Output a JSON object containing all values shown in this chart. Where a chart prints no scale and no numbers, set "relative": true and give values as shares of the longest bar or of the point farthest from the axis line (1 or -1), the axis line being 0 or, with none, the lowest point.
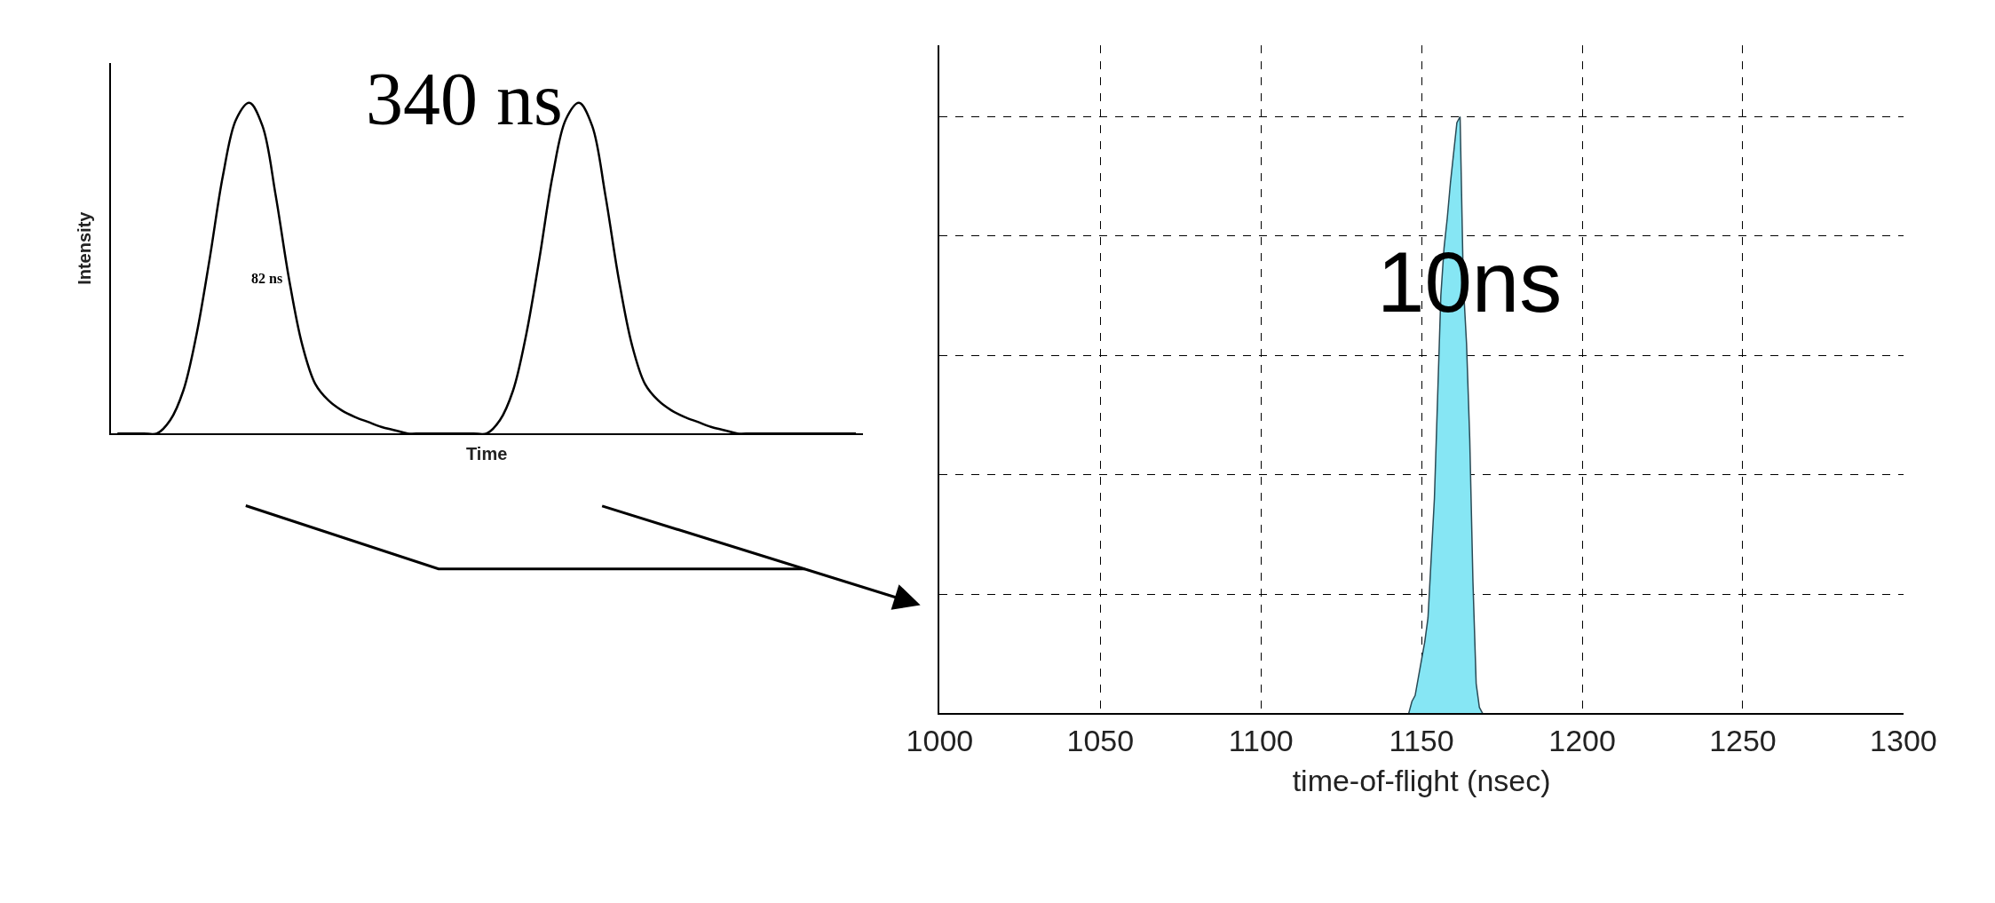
{
  "chart_data": [
    {
      "type": "line",
      "relative": true,
      "xlabel": "Time",
      "ylabel": "Intensity",
      "annotations": [
        "340 ns",
        "82 ns"
      ],
      "categories": [
        null,
        null,
        null,
        null,
        null,
        null,
        null,
        null,
        null,
        null,
        null,
        null,
        null,
        null,
        null,
        null,
        null,
        null,
        null,
        null,
        null,
        null,
        null,
        null,
        null,
        null,
        null,
        null,
        null,
        null,
        null,
        null,
        null,
        null,
        null,
        null,
        null,
        null,
        null,
        null,
        null,
        null,
        null,
        null,
        null,
        null,
        null,
        null,
        null,
        null,
        null,
        null,
        null,
        null,
        null,
        null,
        null
      ],
      "series": [
        {
          "color": "#000000",
          "values": [
            0,
            0,
            0,
            0,
            0.04,
            0.13,
            0.3,
            0.53,
            0.78,
            0.95,
            1,
            0.93,
            0.72,
            0.47,
            0.27,
            0.15,
            0.1,
            0.07,
            0.05,
            0.035,
            0.02,
            0.01,
            0,
            0,
            0,
            0,
            0,
            0,
            0,
            0.04,
            0.13,
            0.3,
            0.53,
            0.78,
            0.95,
            1,
            0.93,
            0.72,
            0.47,
            0.27,
            0.15,
            0.1,
            0.07,
            0.05,
            0.035,
            0.02,
            0.01,
            0,
            0,
            0,
            0,
            0,
            0,
            0,
            0,
            0,
            0
          ]
        }
      ],
      "marker": "none",
      "line_style": "solid",
      "grid": false,
      "tick_labels": false
    },
    {
      "type": "area",
      "relative": true,
      "xlabel": "time-of-flight (nsec)",
      "annotations": [
        "10ns"
      ],
      "x": [
        1146,
        1147,
        1148,
        1149,
        1150,
        1151,
        1152,
        1153,
        1154,
        1155,
        1156,
        1157,
        1158,
        1159,
        1160,
        1161,
        1162,
        1163,
        1164,
        1165,
        1166,
        1167,
        1168,
        1169
      ],
      "values": [
        0,
        0.02,
        0.03,
        0.06,
        0.09,
        0.12,
        0.16,
        0.26,
        0.36,
        0.53,
        0.7,
        0.78,
        0.83,
        0.89,
        0.94,
        0.99,
        1,
        0.72,
        0.62,
        0.46,
        0.22,
        0.05,
        0.01,
        0
      ],
      "color": "#86e6f4",
      "xlim": [
        1000,
        1300
      ],
      "xticks": [
        1000,
        1050,
        1100,
        1150,
        1200,
        1250,
        1300
      ],
      "grid": true,
      "tick_labels": "x"
    }
  ]
}
